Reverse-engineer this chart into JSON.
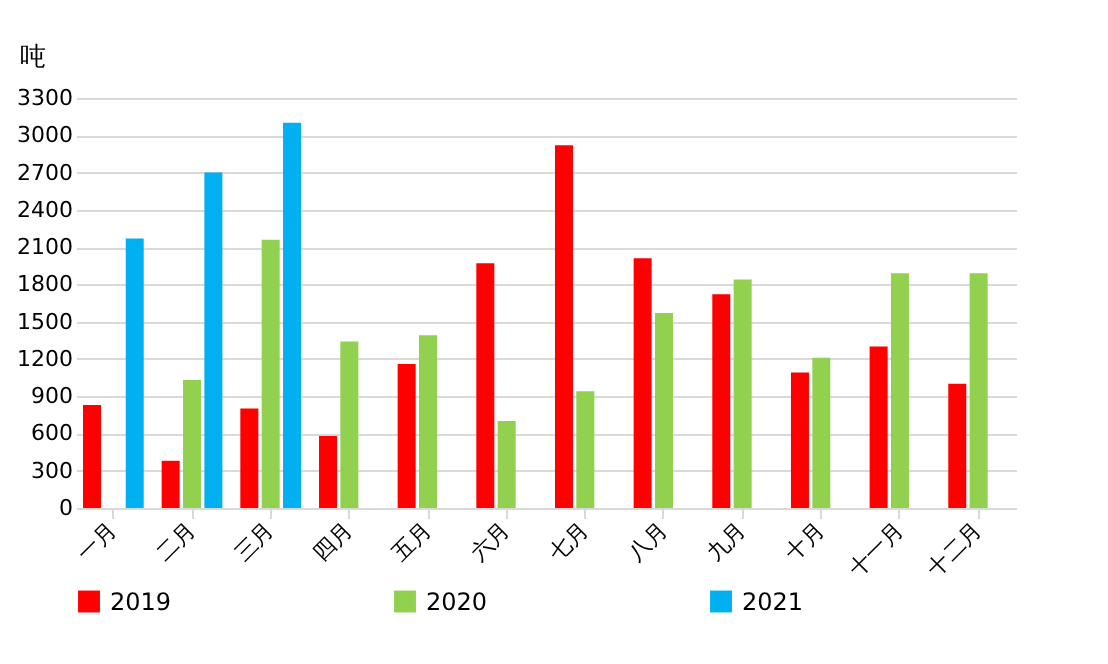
{
  "chart_data": {
    "type": "bar",
    "ylabel": "吨",
    "categories": [
      "一月",
      "二月",
      "三月",
      "四月",
      "五月",
      "六月",
      "七月",
      "八月",
      "九月",
      "十月",
      "十一月",
      "十二月"
    ],
    "series": [
      {
        "name": "2019",
        "color": "#ff0000",
        "values": [
          830,
          380,
          800,
          580,
          1160,
          1970,
          2920,
          2010,
          1720,
          1090,
          1300,
          1000
        ]
      },
      {
        "name": "2020",
        "color": "#92d050",
        "values": [
          null,
          1030,
          2160,
          1340,
          1390,
          700,
          940,
          1570,
          1840,
          1210,
          1890,
          1890
        ]
      },
      {
        "name": "2021",
        "color": "#00b0f0",
        "values": [
          2170,
          2700,
          3100,
          null,
          null,
          null,
          null,
          null,
          null,
          null,
          null,
          null
        ]
      }
    ],
    "ylim": [
      0,
      3300
    ],
    "yticks": [
      0,
      300,
      600,
      900,
      1200,
      1500,
      1800,
      2100,
      2400,
      2700,
      3000,
      3300
    ],
    "grid": "y",
    "legend": "bottom"
  }
}
